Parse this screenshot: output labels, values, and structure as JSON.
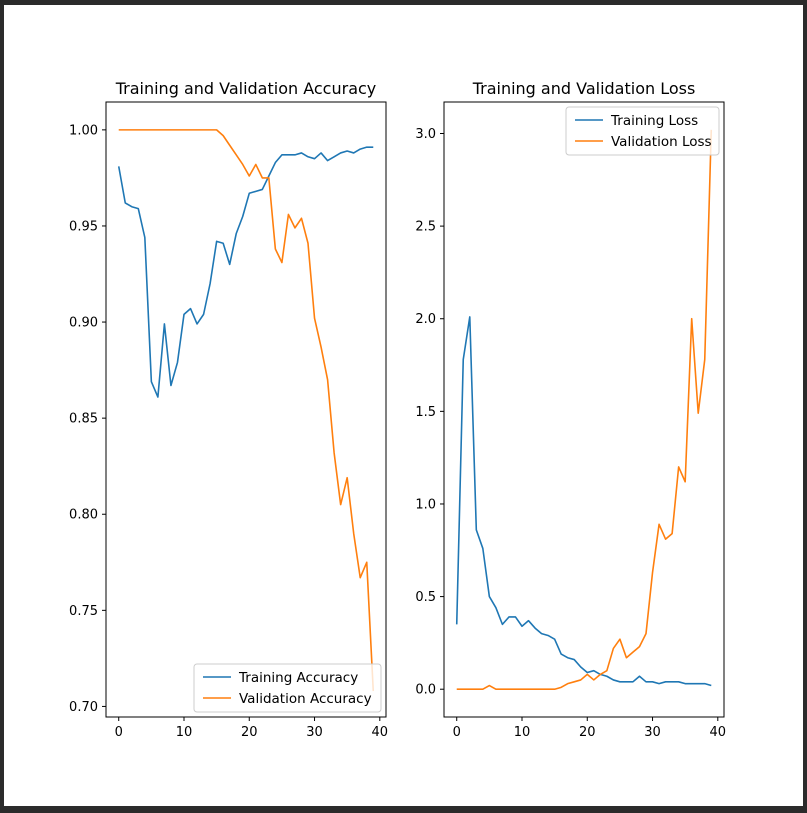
{
  "colors": {
    "training": "#1f77b4",
    "validation": "#ff7f0e"
  },
  "chart_data": [
    {
      "type": "line",
      "title": "Training and Validation Accuracy",
      "xlabel": "",
      "ylabel": "",
      "xlim": [
        -1.95,
        40.95
      ],
      "ylim": [
        0.6945,
        1.0145
      ],
      "xticks": [
        0,
        10,
        20,
        30,
        40
      ],
      "yticks": [
        0.7,
        0.75,
        0.8,
        0.85,
        0.9,
        0.95,
        1.0
      ],
      "ytick_labels": [
        "0.70",
        "0.75",
        "0.80",
        "0.85",
        "0.90",
        "0.95",
        "1.00"
      ],
      "grid": false,
      "legend_position": "lower-right",
      "x": [
        0,
        1,
        2,
        3,
        4,
        5,
        6,
        7,
        8,
        9,
        10,
        11,
        12,
        13,
        14,
        15,
        16,
        17,
        18,
        19,
        20,
        21,
        22,
        23,
        24,
        25,
        26,
        27,
        28,
        29,
        30,
        31,
        32,
        33,
        34,
        35,
        36,
        37,
        38,
        39
      ],
      "series": [
        {
          "name": "Training Accuracy",
          "color_key": "training",
          "values": [
            0.981,
            0.962,
            0.96,
            0.959,
            0.944,
            0.869,
            0.861,
            0.899,
            0.867,
            0.879,
            0.904,
            0.907,
            0.899,
            0.904,
            0.92,
            0.942,
            0.941,
            0.93,
            0.946,
            0.955,
            0.967,
            0.968,
            0.969,
            0.976,
            0.983,
            0.987,
            0.987,
            0.987,
            0.988,
            0.986,
            0.985,
            0.988,
            0.984,
            0.986,
            0.988,
            0.989,
            0.988,
            0.99,
            0.991,
            0.991
          ]
        },
        {
          "name": "Validation Accuracy",
          "color_key": "validation",
          "values": [
            1.0,
            1.0,
            1.0,
            1.0,
            1.0,
            1.0,
            1.0,
            1.0,
            1.0,
            1.0,
            1.0,
            1.0,
            1.0,
            1.0,
            1.0,
            1.0,
            0.997,
            0.992,
            0.987,
            0.982,
            0.976,
            0.982,
            0.975,
            0.975,
            0.938,
            0.931,
            0.956,
            0.949,
            0.954,
            0.941,
            0.902,
            0.887,
            0.87,
            0.832,
            0.805,
            0.819,
            0.79,
            0.767,
            0.775,
            0.708
          ]
        }
      ]
    },
    {
      "type": "line",
      "title": "Training and Validation Loss",
      "xlabel": "",
      "ylabel": "",
      "xlim": [
        -1.95,
        40.95
      ],
      "ylim": [
        -0.15,
        3.17
      ],
      "xticks": [
        0,
        10,
        20,
        30,
        40
      ],
      "yticks": [
        0.0,
        0.5,
        1.0,
        1.5,
        2.0,
        2.5,
        3.0
      ],
      "ytick_labels": [
        "0.0",
        "0.5",
        "1.0",
        "1.5",
        "2.0",
        "2.5",
        "3.0"
      ],
      "grid": false,
      "legend_position": "upper-right",
      "x": [
        0,
        1,
        2,
        3,
        4,
        5,
        6,
        7,
        8,
        9,
        10,
        11,
        12,
        13,
        14,
        15,
        16,
        17,
        18,
        19,
        20,
        21,
        22,
        23,
        24,
        25,
        26,
        27,
        28,
        29,
        30,
        31,
        32,
        33,
        34,
        35,
        36,
        37,
        38,
        39
      ],
      "series": [
        {
          "name": "Training Loss",
          "color_key": "training",
          "values": [
            0.35,
            1.78,
            2.01,
            0.86,
            0.76,
            0.5,
            0.44,
            0.35,
            0.39,
            0.39,
            0.34,
            0.37,
            0.33,
            0.3,
            0.29,
            0.27,
            0.19,
            0.17,
            0.16,
            0.12,
            0.09,
            0.1,
            0.08,
            0.07,
            0.05,
            0.04,
            0.04,
            0.04,
            0.07,
            0.04,
            0.04,
            0.03,
            0.04,
            0.04,
            0.04,
            0.03,
            0.03,
            0.03,
            0.03,
            0.02
          ]
        },
        {
          "name": "Validation Loss",
          "color_key": "validation",
          "values": [
            0.0,
            0.0,
            0.0,
            0.0,
            0.0,
            0.02,
            0.0,
            0.0,
            0.0,
            0.0,
            0.0,
            0.0,
            0.0,
            0.0,
            0.0,
            0.0,
            0.01,
            0.03,
            0.04,
            0.05,
            0.08,
            0.05,
            0.08,
            0.1,
            0.22,
            0.27,
            0.17,
            0.2,
            0.23,
            0.3,
            0.63,
            0.89,
            0.81,
            0.84,
            1.2,
            1.12,
            2.0,
            1.49,
            1.78,
            3.02
          ]
        }
      ]
    }
  ]
}
